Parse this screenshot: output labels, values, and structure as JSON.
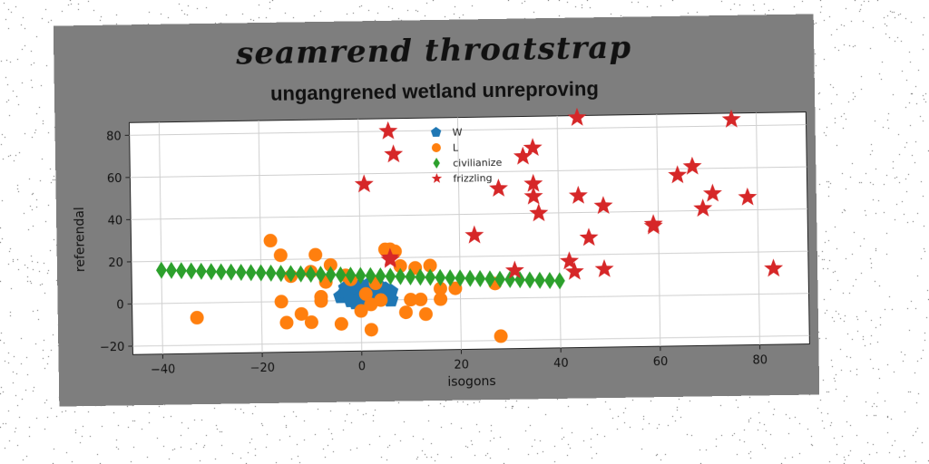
{
  "suptitle": "seamrend throatstrap",
  "chart_data": {
    "type": "scatter",
    "title": "ungangrened wetland unreproving",
    "xlabel": "isogons",
    "ylabel": "referendal",
    "xlim": [
      -46,
      90
    ],
    "ylim": [
      -24,
      86
    ],
    "xticks": [
      -40,
      -20,
      0,
      20,
      40,
      60,
      80
    ],
    "yticks": [
      -20,
      0,
      20,
      40,
      60,
      80
    ],
    "xtick_labels": [
      "−40",
      "−20",
      "0",
      "20",
      "40",
      "60",
      "80"
    ],
    "ytick_labels": [
      "−20",
      "0",
      "20",
      "40",
      "60",
      "80"
    ],
    "grid": true,
    "legend_position": "upper-center",
    "series": [
      {
        "name": "W",
        "marker": "pentagon",
        "color": "#1f77b4",
        "x": [
          -4,
          -3,
          -2,
          -1,
          0,
          1,
          2,
          3,
          4,
          5,
          6,
          -3,
          -1,
          1,
          3,
          5,
          -2,
          0,
          2,
          4,
          6,
          0,
          2,
          4,
          1,
          -1
        ],
        "y": [
          2,
          4,
          1,
          3,
          5,
          2,
          4,
          1,
          3,
          2,
          4,
          6,
          6,
          5,
          6,
          5,
          0,
          1,
          0,
          1,
          0,
          7,
          8,
          6,
          -1,
          -1
        ]
      },
      {
        "name": "L",
        "marker": "circle",
        "color": "#ff7f0e",
        "x": [
          -33,
          -18,
          -16,
          -16,
          -15,
          -12,
          -10,
          -10,
          -9,
          -8,
          -7,
          -6,
          -4,
          -3,
          -2,
          0,
          1,
          2,
          3,
          4,
          5,
          6,
          7,
          8,
          10,
          11,
          12,
          14,
          16,
          16,
          19,
          27,
          28,
          -14,
          -8,
          2,
          9,
          13
        ],
        "y": [
          -7,
          29,
          22,
          0,
          -10,
          -6,
          14,
          -10,
          22,
          0,
          9,
          17,
          -11,
          12,
          10,
          -5,
          3,
          -14,
          8,
          0,
          24,
          24,
          23,
          16,
          0,
          15,
          0,
          16,
          5,
          0,
          5,
          7,
          -18,
          12,
          2,
          -2,
          -6,
          -7
        ]
      },
      {
        "name": "civilianize",
        "marker": "diamond",
        "color": "#2ca02c",
        "x": [
          -40,
          -38,
          -36,
          -34,
          -32,
          -30,
          -28,
          -26,
          -24,
          -22,
          -20,
          -18,
          -16,
          -14,
          -12,
          -10,
          -8,
          -6,
          -4,
          -2,
          0,
          2,
          4,
          6,
          8,
          10,
          12,
          14,
          16,
          18,
          20,
          22,
          24,
          26,
          28,
          30,
          32,
          34,
          36,
          38,
          40
        ],
        "y": [
          15.8,
          15.6,
          15.4,
          15.2,
          15.0,
          14.8,
          14.6,
          14.4,
          14.2,
          14.0,
          13.8,
          13.6,
          13.4,
          13.2,
          13.0,
          12.8,
          12.6,
          12.4,
          12.2,
          12.0,
          11.8,
          11.6,
          11.4,
          11.2,
          11.0,
          10.8,
          10.6,
          10.4,
          10.2,
          10.0,
          9.8,
          9.6,
          9.4,
          9.2,
          9.0,
          8.8,
          8.6,
          8.4,
          8.2,
          8.0,
          7.8
        ]
      },
      {
        "name": "frizzling",
        "marker": "star",
        "color": "#d62728",
        "x": [
          6,
          6,
          7,
          1,
          6,
          23,
          28,
          31,
          33,
          35,
          35,
          36,
          35,
          42,
          43,
          44,
          44,
          46,
          49,
          49,
          59,
          59,
          64,
          67,
          69,
          71,
          75,
          78,
          83
        ],
        "y": [
          80,
          20,
          69,
          55,
          19,
          30,
          52,
          13,
          67,
          71,
          54,
          40,
          48,
          17,
          12,
          48,
          85,
          28,
          13,
          43,
          34,
          33,
          57,
          61,
          41,
          48,
          83,
          46,
          12
        ]
      }
    ]
  }
}
